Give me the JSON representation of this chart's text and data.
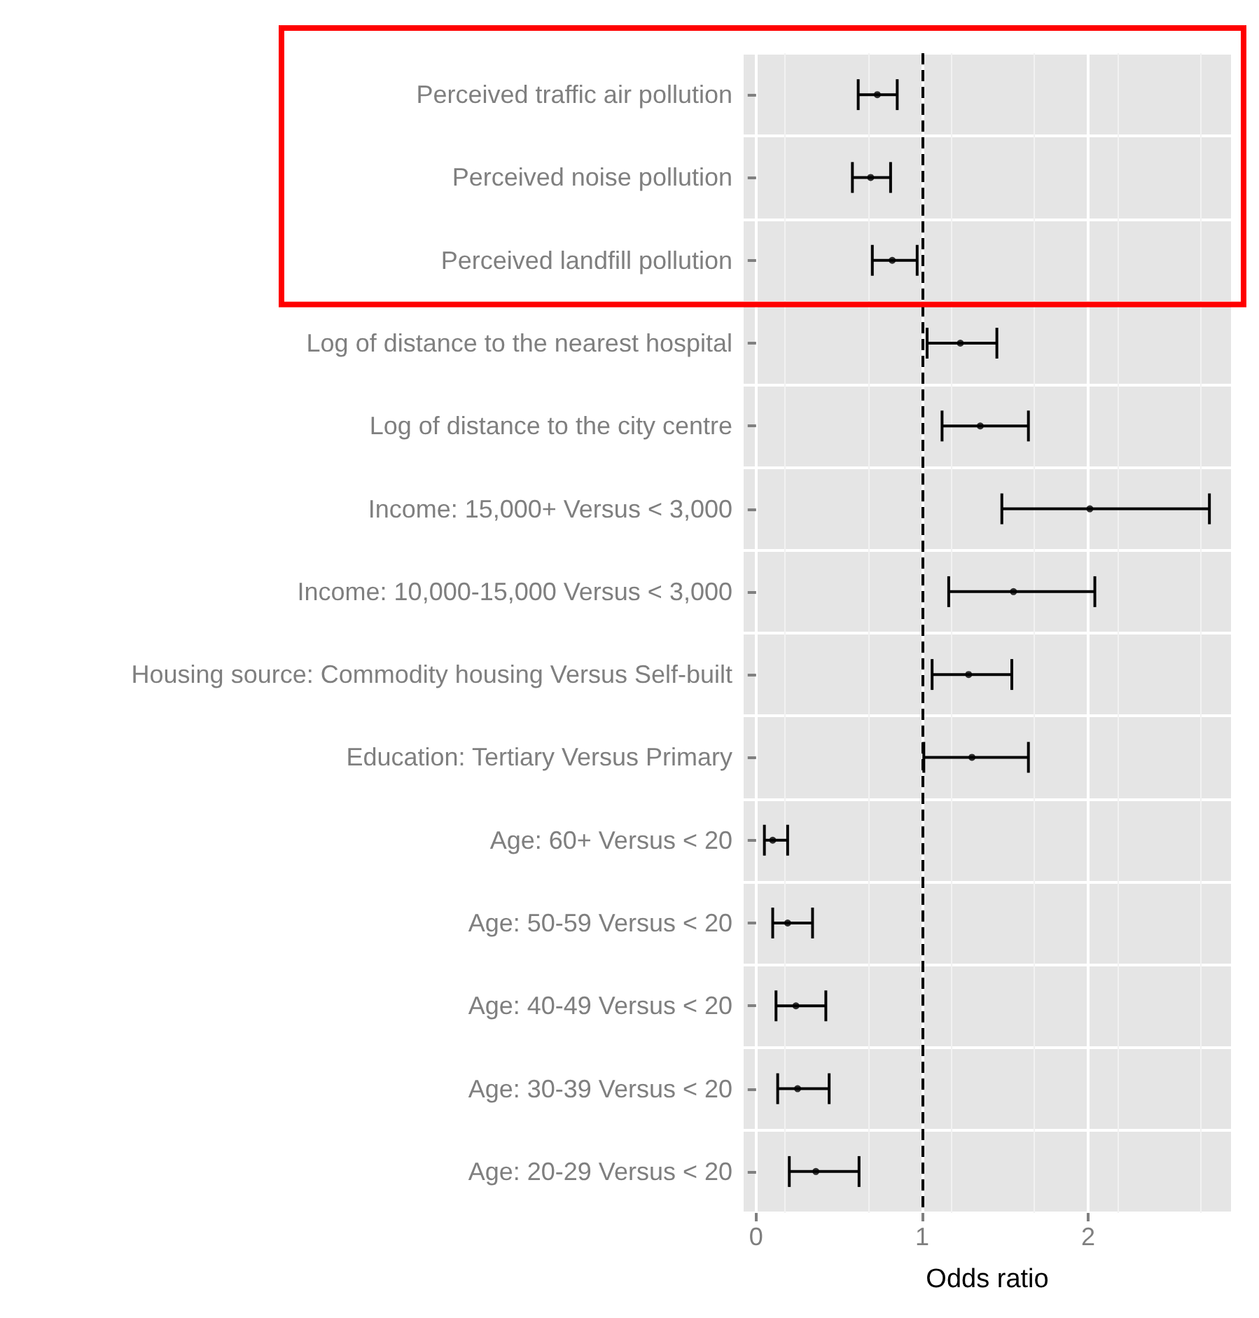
{
  "chart_data": {
    "type": "scatter",
    "orientation": "horizontal",
    "xlabel": "Odds ratio",
    "categories": [
      "Perceived traffic air pollution",
      "Perceived noise pollution",
      "Perceived landfill pollution",
      "Log of distance to the nearest hospital",
      "Log of distance to the city centre",
      "Income: 15,000+ Versus < 3,000",
      "Income: 10,000-15,000 Versus < 3,000",
      "Housing source: Commodity housing Versus Self-built",
      "Education: Tertiary Versus Primary",
      "Age: 60+ Versus < 20",
      "Age: 50-59 Versus < 20",
      "Age: 40-49 Versus < 20",
      "Age: 30-39 Versus < 20",
      "Age: 20-29 Versus < 20"
    ],
    "series": [
      {
        "color": "#000000",
        "values": [
          0.73,
          0.69,
          0.82,
          1.23,
          1.35,
          2.01,
          1.55,
          1.28,
          1.3,
          0.1,
          0.19,
          0.24,
          0.25,
          0.36
        ],
        "errors": [
          [
            0.615,
            0.85
          ],
          [
            0.58,
            0.81
          ],
          [
            0.7,
            0.97
          ],
          [
            1.03,
            1.45
          ],
          [
            1.12,
            1.64
          ],
          [
            1.48,
            2.73
          ],
          [
            1.16,
            2.04
          ],
          [
            1.06,
            1.54
          ],
          [
            1.01,
            1.64
          ],
          [
            0.05,
            0.19
          ],
          [
            0.1,
            0.34
          ],
          [
            0.12,
            0.42
          ],
          [
            0.13,
            0.44
          ],
          [
            0.2,
            0.62
          ]
        ]
      }
    ],
    "xlim": [
      -0.075,
      2.86
    ],
    "xticks": [
      0,
      1,
      2
    ],
    "grid": true,
    "marker": "circle",
    "ref_lines": [
      {
        "axis": "x",
        "value": 1,
        "color": "#000000",
        "line_style": "dashed"
      }
    ]
  }
}
